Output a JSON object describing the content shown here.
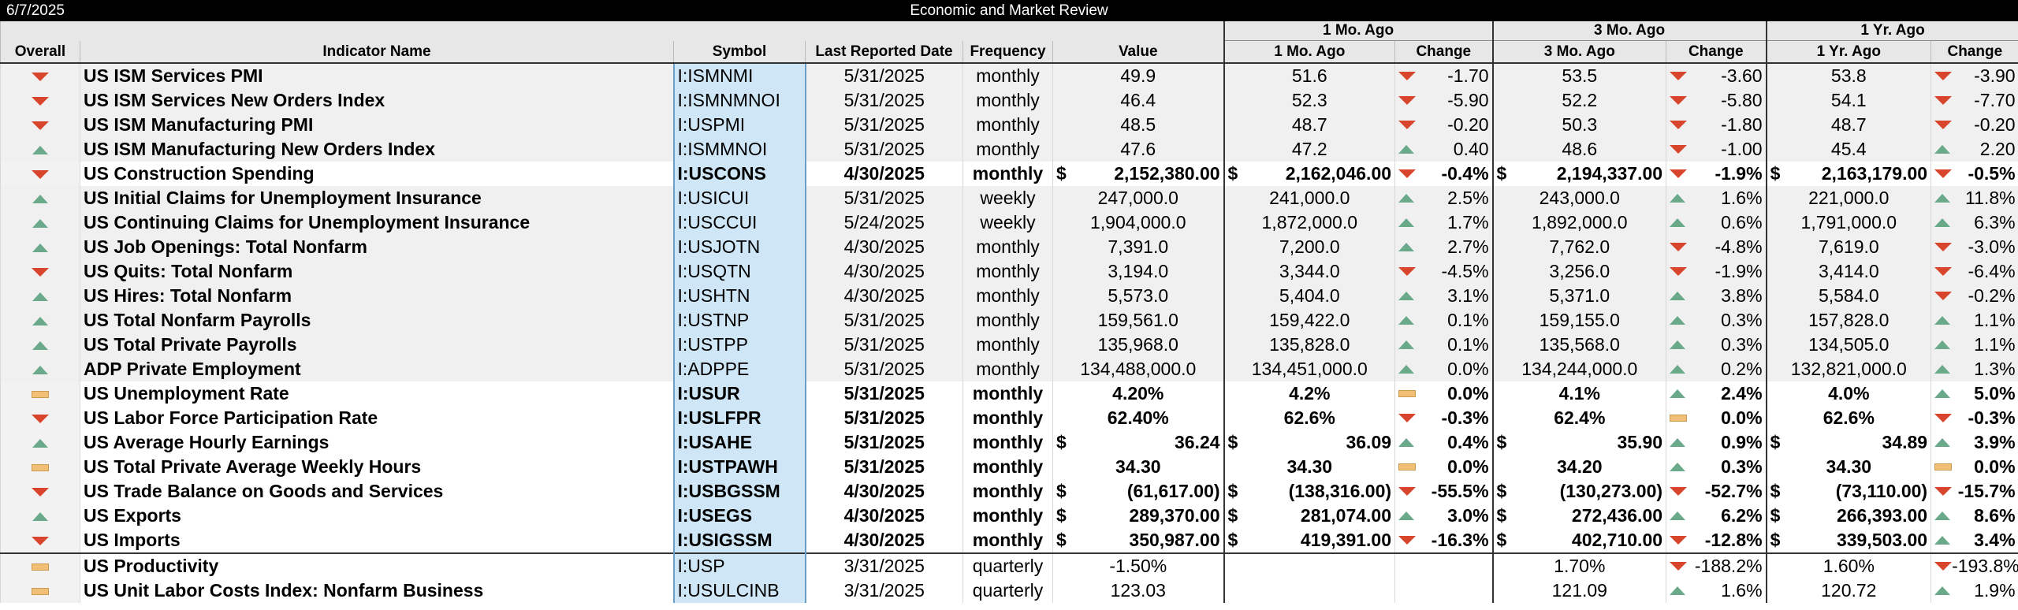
{
  "header": {
    "date": "6/7/2025",
    "title": "Economic and Market Review"
  },
  "groups": [
    "1 Mo. Ago",
    "3 Mo. Ago",
    "1 Yr. Ago"
  ],
  "columns": {
    "overall": "Overall",
    "name": "Indicator Name",
    "symbol": "Symbol",
    "last_date": "Last Reported Date",
    "frequency": "Frequency",
    "value": "Value",
    "m1": "1 Mo. Ago",
    "m1_change": "Change",
    "m3": "3 Mo. Ago",
    "m3_change": "Change",
    "y1": "1 Yr. Ago",
    "y1_change": "Change"
  },
  "icon_colors": {
    "up": "#6aa98a",
    "down": "#d9442c",
    "flat": "#f2bf77"
  },
  "rows": [
    {
      "overall": "down",
      "name": "US ISM Services PMI",
      "symbol": "I:ISMNMI",
      "date": "5/31/2025",
      "freq": "monthly",
      "cur": "",
      "value": "49.9",
      "m1cur": "",
      "m1": "51.6",
      "m1dir": "down",
      "m1chg": "-1.70",
      "m3cur": "",
      "m3": "53.5",
      "m3dir": "down",
      "m3chg": "-3.60",
      "y1cur": "",
      "y1": "53.8",
      "y1dir": "down",
      "y1chg": "-3.90",
      "bold": false,
      "style": "grey"
    },
    {
      "overall": "down",
      "name": "US ISM Services New Orders Index",
      "symbol": "I:ISMNMNOI",
      "date": "5/31/2025",
      "freq": "monthly",
      "cur": "",
      "value": "46.4",
      "m1cur": "",
      "m1": "52.3",
      "m1dir": "down",
      "m1chg": "-5.90",
      "m3cur": "",
      "m3": "52.2",
      "m3dir": "down",
      "m3chg": "-5.80",
      "y1cur": "",
      "y1": "54.1",
      "y1dir": "down",
      "y1chg": "-7.70",
      "bold": false,
      "style": "grey"
    },
    {
      "overall": "down",
      "name": "US ISM Manufacturing PMI",
      "symbol": "I:USPMI",
      "date": "5/31/2025",
      "freq": "monthly",
      "cur": "",
      "value": "48.5",
      "m1cur": "",
      "m1": "48.7",
      "m1dir": "down",
      "m1chg": "-0.20",
      "m3cur": "",
      "m3": "50.3",
      "m3dir": "down",
      "m3chg": "-1.80",
      "y1cur": "",
      "y1": "48.7",
      "y1dir": "down",
      "y1chg": "-0.20",
      "bold": false,
      "style": "grey"
    },
    {
      "overall": "up",
      "name": "US ISM Manufacturing New Orders Index",
      "symbol": "I:ISMMNOI",
      "date": "5/31/2025",
      "freq": "monthly",
      "cur": "",
      "value": "47.6",
      "m1cur": "",
      "m1": "47.2",
      "m1dir": "up",
      "m1chg": "0.40",
      "m3cur": "",
      "m3": "48.6",
      "m3dir": "down",
      "m3chg": "-1.00",
      "y1cur": "",
      "y1": "45.4",
      "y1dir": "up",
      "y1chg": "2.20",
      "bold": false,
      "style": "grey"
    },
    {
      "overall": "down",
      "name": "US Construction Spending",
      "symbol": "I:USCONS",
      "date": "4/30/2025",
      "freq": "monthly",
      "cur": "$",
      "value": "2,152,380.00",
      "m1cur": "$",
      "m1": "2,162,046.00",
      "m1dir": "down",
      "m1chg": "-0.4%",
      "m3cur": "$",
      "m3": "2,194,337.00",
      "m3dir": "down",
      "m3chg": "-1.9%",
      "y1cur": "$",
      "y1": "2,163,179.00",
      "y1dir": "down",
      "y1chg": "-0.5%",
      "bold": true,
      "style": "white"
    },
    {
      "overall": "up",
      "name": "US Initial Claims for Unemployment Insurance",
      "symbol": "I:USICUI",
      "date": "5/31/2025",
      "freq": "weekly",
      "cur": "",
      "value": "247,000.0",
      "m1cur": "",
      "m1": "241,000.0",
      "m1dir": "up",
      "m1chg": "2.5%",
      "m3cur": "",
      "m3": "243,000.0",
      "m3dir": "up",
      "m3chg": "1.6%",
      "y1cur": "",
      "y1": "221,000.0",
      "y1dir": "up",
      "y1chg": "11.8%",
      "bold": false,
      "style": "grey"
    },
    {
      "overall": "up",
      "name": "US Continuing Claims for Unemployment Insurance",
      "symbol": "I:USCCUI",
      "date": "5/24/2025",
      "freq": "weekly",
      "cur": "",
      "value": "1,904,000.0",
      "m1cur": "",
      "m1": "1,872,000.0",
      "m1dir": "up",
      "m1chg": "1.7%",
      "m3cur": "",
      "m3": "1,892,000.0",
      "m3dir": "up",
      "m3chg": "0.6%",
      "y1cur": "",
      "y1": "1,791,000.0",
      "y1dir": "up",
      "y1chg": "6.3%",
      "bold": false,
      "style": "grey"
    },
    {
      "overall": "up",
      "name": "US Job Openings: Total Nonfarm",
      "symbol": "I:USJOTN",
      "date": "4/30/2025",
      "freq": "monthly",
      "cur": "",
      "value": "7,391.0",
      "m1cur": "",
      "m1": "7,200.0",
      "m1dir": "up",
      "m1chg": "2.7%",
      "m3cur": "",
      "m3": "7,762.0",
      "m3dir": "down",
      "m3chg": "-4.8%",
      "y1cur": "",
      "y1": "7,619.0",
      "y1dir": "down",
      "y1chg": "-3.0%",
      "bold": false,
      "style": "grey"
    },
    {
      "overall": "down",
      "name": "US Quits: Total Nonfarm",
      "symbol": "I:USQTN",
      "date": "4/30/2025",
      "freq": "monthly",
      "cur": "",
      "value": "3,194.0",
      "m1cur": "",
      "m1": "3,344.0",
      "m1dir": "down",
      "m1chg": "-4.5%",
      "m3cur": "",
      "m3": "3,256.0",
      "m3dir": "down",
      "m3chg": "-1.9%",
      "y1cur": "",
      "y1": "3,414.0",
      "y1dir": "down",
      "y1chg": "-6.4%",
      "bold": false,
      "style": "grey"
    },
    {
      "overall": "up",
      "name": "US Hires: Total Nonfarm",
      "symbol": "I:USHTN",
      "date": "4/30/2025",
      "freq": "monthly",
      "cur": "",
      "value": "5,573.0",
      "m1cur": "",
      "m1": "5,404.0",
      "m1dir": "up",
      "m1chg": "3.1%",
      "m3cur": "",
      "m3": "5,371.0",
      "m3dir": "up",
      "m3chg": "3.8%",
      "y1cur": "",
      "y1": "5,584.0",
      "y1dir": "down",
      "y1chg": "-0.2%",
      "bold": false,
      "style": "grey"
    },
    {
      "overall": "up",
      "name": "US Total Nonfarm Payrolls",
      "symbol": "I:USTNP",
      "date": "5/31/2025",
      "freq": "monthly",
      "cur": "",
      "value": "159,561.0",
      "m1cur": "",
      "m1": "159,422.0",
      "m1dir": "up",
      "m1chg": "0.1%",
      "m3cur": "",
      "m3": "159,155.0",
      "m3dir": "up",
      "m3chg": "0.3%",
      "y1cur": "",
      "y1": "157,828.0",
      "y1dir": "up",
      "y1chg": "1.1%",
      "bold": false,
      "style": "grey"
    },
    {
      "overall": "up",
      "name": "US Total Private Payrolls",
      "symbol": "I:USTPP",
      "date": "5/31/2025",
      "freq": "monthly",
      "cur": "",
      "value": "135,968.0",
      "m1cur": "",
      "m1": "135,828.0",
      "m1dir": "up",
      "m1chg": "0.1%",
      "m3cur": "",
      "m3": "135,568.0",
      "m3dir": "up",
      "m3chg": "0.3%",
      "y1cur": "",
      "y1": "134,505.0",
      "y1dir": "up",
      "y1chg": "1.1%",
      "bold": false,
      "style": "grey"
    },
    {
      "overall": "up",
      "name": "ADP Private Employment",
      "symbol": "I:ADPPE",
      "date": "5/31/2025",
      "freq": "monthly",
      "cur": "",
      "value": "134,488,000.0",
      "m1cur": "",
      "m1": "134,451,000.0",
      "m1dir": "up",
      "m1chg": "0.0%",
      "m3cur": "",
      "m3": "134,244,000.0",
      "m3dir": "up",
      "m3chg": "0.2%",
      "y1cur": "",
      "y1": "132,821,000.0",
      "y1dir": "up",
      "y1chg": "1.3%",
      "bold": false,
      "style": "grey"
    },
    {
      "overall": "flat",
      "name": "US Unemployment Rate",
      "symbol": "I:USUR",
      "date": "5/31/2025",
      "freq": "monthly",
      "cur": "",
      "value": "4.20%",
      "m1cur": "",
      "m1": "4.2%",
      "m1dir": "flat",
      "m1chg": "0.0%",
      "m3cur": "",
      "m3": "4.1%",
      "m3dir": "up",
      "m3chg": "2.4%",
      "y1cur": "",
      "y1": "4.0%",
      "y1dir": "up",
      "y1chg": "5.0%",
      "bold": true,
      "style": "white"
    },
    {
      "overall": "down",
      "name": "US Labor Force Participation Rate",
      "symbol": "I:USLFPR",
      "date": "5/31/2025",
      "freq": "monthly",
      "cur": "",
      "value": "62.40%",
      "m1cur": "",
      "m1": "62.6%",
      "m1dir": "down",
      "m1chg": "-0.3%",
      "m3cur": "",
      "m3": "62.4%",
      "m3dir": "flat",
      "m3chg": "0.0%",
      "y1cur": "",
      "y1": "62.6%",
      "y1dir": "down",
      "y1chg": "-0.3%",
      "bold": true,
      "style": "white"
    },
    {
      "overall": "up",
      "name": "US Average Hourly Earnings",
      "symbol": "I:USAHE",
      "date": "5/31/2025",
      "freq": "monthly",
      "cur": "$",
      "value": "36.24",
      "m1cur": "$",
      "m1": "36.09",
      "m1dir": "up",
      "m1chg": "0.4%",
      "m3cur": "$",
      "m3": "35.90",
      "m3dir": "up",
      "m3chg": "0.9%",
      "y1cur": "$",
      "y1": "34.89",
      "y1dir": "up",
      "y1chg": "3.9%",
      "bold": true,
      "style": "white"
    },
    {
      "overall": "flat",
      "name": "US Total Private Average Weekly Hours",
      "symbol": "I:USTPAWH",
      "date": "5/31/2025",
      "freq": "monthly",
      "cur": "",
      "value": "34.30",
      "m1cur": "",
      "m1": "34.30",
      "m1dir": "flat",
      "m1chg": "0.0%",
      "m3cur": "",
      "m3": "34.20",
      "m3dir": "up",
      "m3chg": "0.3%",
      "y1cur": "",
      "y1": "34.30",
      "y1dir": "flat",
      "y1chg": "0.0%",
      "bold": true,
      "style": "white"
    },
    {
      "overall": "down",
      "name": "US Trade Balance on Goods and Services",
      "symbol": "I:USBGSSM",
      "date": "4/30/2025",
      "freq": "monthly",
      "cur": "$",
      "value": "(61,617.00)",
      "m1cur": "$",
      "m1": "(138,316.00)",
      "m1dir": "down",
      "m1chg": "-55.5%",
      "m3cur": "$",
      "m3": "(130,273.00)",
      "m3dir": "down",
      "m3chg": "-52.7%",
      "y1cur": "$",
      "y1": "(73,110.00)",
      "y1dir": "down",
      "y1chg": "-15.7%",
      "bold": true,
      "style": "white"
    },
    {
      "overall": "up",
      "name": "US Exports",
      "symbol": "I:USEGS",
      "date": "4/30/2025",
      "freq": "monthly",
      "cur": "$",
      "value": "289,370.00",
      "m1cur": "$",
      "m1": "281,074.00",
      "m1dir": "up",
      "m1chg": "3.0%",
      "m3cur": "$",
      "m3": "272,436.00",
      "m3dir": "up",
      "m3chg": "6.2%",
      "y1cur": "$",
      "y1": "266,393.00",
      "y1dir": "up",
      "y1chg": "8.6%",
      "bold": true,
      "style": "white"
    },
    {
      "overall": "down",
      "name": "US Imports",
      "symbol": "I:USIGSSM",
      "date": "4/30/2025",
      "freq": "monthly",
      "cur": "$",
      "value": "350,987.00",
      "m1cur": "$",
      "m1": "419,391.00",
      "m1dir": "down",
      "m1chg": "-16.3%",
      "m3cur": "$",
      "m3": "402,710.00",
      "m3dir": "down",
      "m3chg": "-12.8%",
      "y1cur": "$",
      "y1": "339,503.00",
      "y1dir": "up",
      "y1chg": "3.4%",
      "bold": true,
      "style": "white"
    },
    {
      "overall": "flat",
      "name": "US Productivity",
      "symbol": "I:USP",
      "date": "3/31/2025",
      "freq": "quarterly",
      "cur": "",
      "value": "-1.50%",
      "m1cur": "",
      "m1": "",
      "m1dir": "",
      "m1chg": "",
      "m3cur": "",
      "m3": "1.70%",
      "m3dir": "down",
      "m3chg": "-188.2%",
      "y1cur": "",
      "y1": "1.60%",
      "y1dir": "down",
      "y1chg": "-193.8%",
      "bold": false,
      "style": "white",
      "sep": true
    },
    {
      "overall": "flat",
      "name": "US Unit Labor Costs Index: Nonfarm Business",
      "symbol": "I:USULCINB",
      "date": "3/31/2025",
      "freq": "quarterly",
      "cur": "",
      "value": "123.03",
      "m1cur": "",
      "m1": "",
      "m1dir": "",
      "m1chg": "",
      "m3cur": "",
      "m3": "121.09",
      "m3dir": "up",
      "m3chg": "1.6%",
      "y1cur": "",
      "y1": "120.72",
      "y1dir": "up",
      "y1chg": "1.9%",
      "bold": false,
      "style": "white"
    }
  ]
}
